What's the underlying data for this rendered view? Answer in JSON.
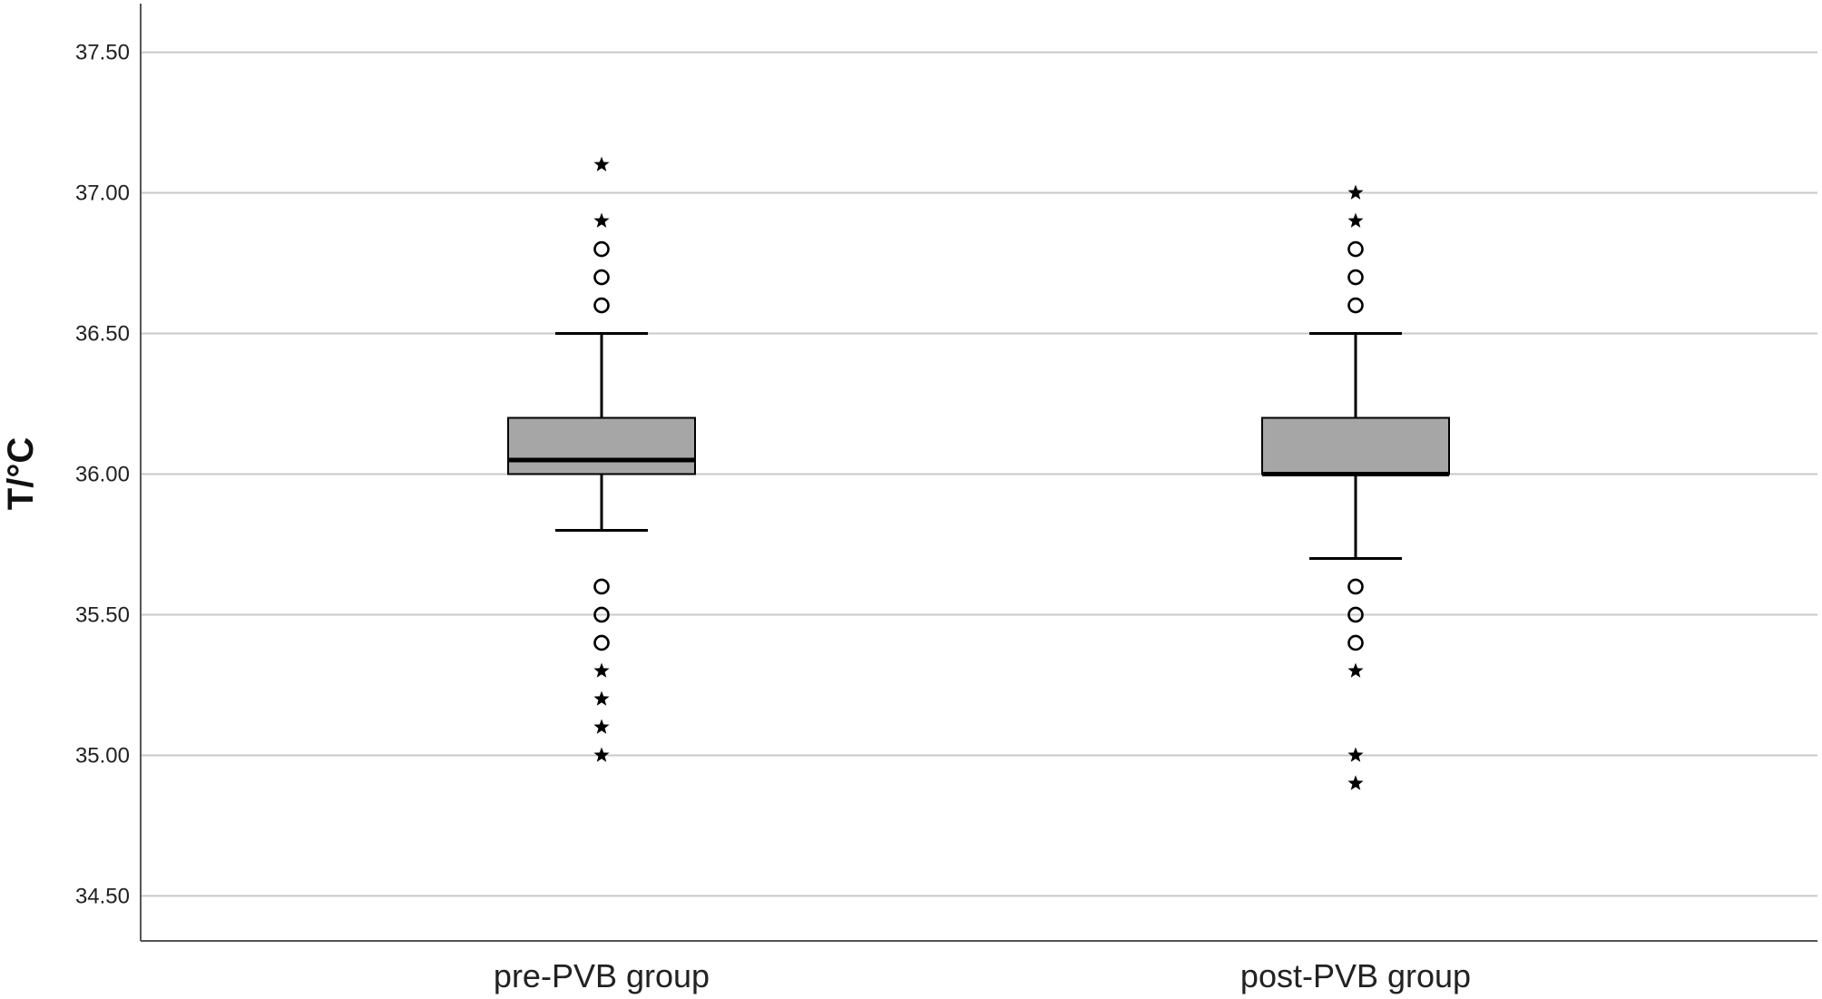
{
  "chart_data": {
    "type": "boxplot",
    "title": "",
    "xlabel": "",
    "ylabel": "T/°C",
    "ylim": [
      34.34,
      37.66
    ],
    "yticks": [
      34.5,
      35.0,
      35.5,
      36.0,
      36.5,
      37.0,
      37.5
    ],
    "ytick_labels": [
      "34.50",
      "35.00",
      "35.50",
      "36.00",
      "36.50",
      "37.00",
      "37.50"
    ],
    "grid": true,
    "categories": [
      "pre-PVB group",
      "post-PVB group"
    ],
    "boxes": [
      {
        "category": "pre-PVB group",
        "whisker_low": 35.8,
        "q1": 36.0,
        "median": 36.05,
        "q3": 36.2,
        "whisker_high": 36.5,
        "outliers": [
          36.6,
          36.7,
          36.8,
          35.6,
          35.5,
          35.4
        ],
        "extremes": [
          37.1,
          36.9,
          35.3,
          35.2,
          35.1,
          35.0
        ]
      },
      {
        "category": "post-PVB group",
        "whisker_low": 35.7,
        "q1": 36.0,
        "median": 36.0,
        "q3": 36.2,
        "whisker_high": 36.5,
        "outliers": [
          36.6,
          36.7,
          36.8,
          35.6,
          35.5,
          35.4
        ],
        "extremes": [
          37.0,
          36.9,
          35.3,
          35.0,
          34.9
        ]
      }
    ],
    "colors": {
      "box_fill": "#a6a6a6",
      "box_stroke": "#000000",
      "grid": "#c8c8c8",
      "axis": "#555555"
    }
  }
}
